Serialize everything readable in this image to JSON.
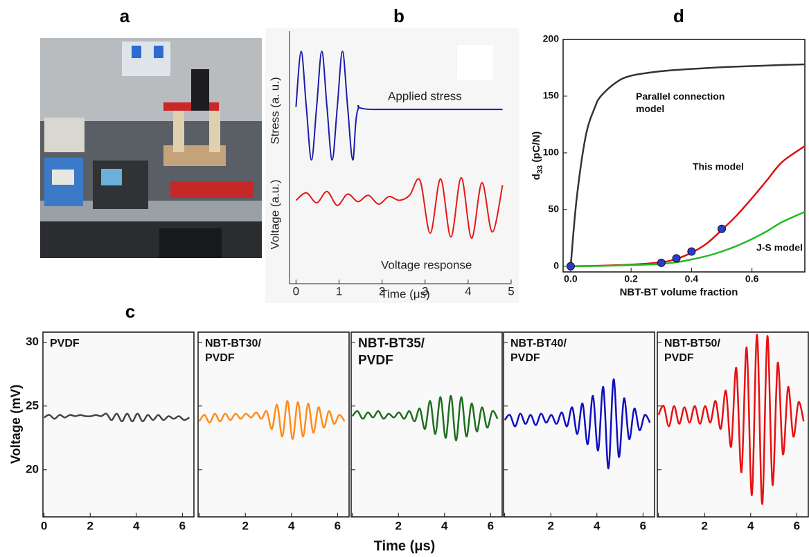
{
  "panel_labels": [
    "a",
    "b",
    "c",
    "d"
  ],
  "chart_data": [
    {
      "type": "line",
      "xlabel": "Time (μs)",
      "ylabels": [
        "Stress (a. u.)",
        "Voltage (a.u.)"
      ],
      "xlim": [
        -0.15,
        5
      ],
      "xticks": [
        0,
        1,
        2,
        3,
        4,
        5
      ],
      "ylim": [
        -10,
        10
      ],
      "series": [
        {
          "name": "Applied stress",
          "color": "#1c1caa",
          "x": [
            0,
            0.12,
            0.24,
            0.36,
            0.48,
            0.6,
            0.72,
            0.84,
            0.96,
            1.08,
            1.2,
            1.32,
            1.44,
            1.8,
            4.8
          ],
          "values": [
            4,
            8.4,
            4,
            -0.2,
            4,
            8.4,
            4,
            -0.2,
            4,
            8.4,
            4,
            -0.2,
            3.8,
            3.8,
            3.8
          ]
        },
        {
          "name": "Voltage response",
          "color": "#e31a1a",
          "x": [
            0,
            0.24,
            0.48,
            0.72,
            0.96,
            1.2,
            1.44,
            1.68,
            1.92,
            2.16,
            2.4,
            2.64,
            2.88,
            3.12,
            3.36,
            3.6,
            3.84,
            4.08,
            4.32,
            4.56,
            4.8
          ],
          "values": [
            -3.4,
            -2.8,
            -3.6,
            -2.7,
            -3.8,
            -2.9,
            -3.5,
            -3.0,
            -3.7,
            -3.1,
            -3.4,
            -3.0,
            -1.8,
            -6.0,
            -1.7,
            -6.3,
            -1.6,
            -6.4,
            -2.0,
            -5.9,
            -2.2
          ]
        }
      ]
    },
    {
      "type": "line",
      "ylabel": {
        "symbol": "d",
        "subscript": "33",
        "unit": " (pC/N)"
      },
      "xlabel": "NBT-BT volume fraction",
      "xlim": [
        -0.025,
        0.775
      ],
      "xticks": [
        {
          "value": 0,
          "label": "0.0"
        },
        0.2,
        0.4,
        0.6
      ],
      "ylim": [
        -5,
        200
      ],
      "yticks": [
        0,
        50,
        100,
        150,
        200
      ],
      "series": [
        {
          "name": "Parallel connection model",
          "color": "#333333",
          "x": [
            0,
            0.02,
            0.05,
            0.08,
            0.1,
            0.15,
            0.2,
            0.3,
            0.4,
            0.5,
            0.6,
            0.7,
            0.775
          ],
          "values": [
            0,
            60,
            115,
            140,
            150,
            162,
            168,
            172,
            174,
            175.5,
            176.5,
            177.5,
            178
          ]
        },
        {
          "name": "This model",
          "color": "#e01010",
          "x": [
            0,
            0.1,
            0.2,
            0.3,
            0.35,
            0.4,
            0.45,
            0.5,
            0.55,
            0.6,
            0.65,
            0.7,
            0.775
          ],
          "values": [
            0,
            0.5,
            1.5,
            3.5,
            6.5,
            12,
            20,
            32,
            45,
            60,
            76,
            92,
            106
          ]
        },
        {
          "name": "J-S model",
          "color": "#22bb22",
          "x": [
            0,
            0.1,
            0.2,
            0.3,
            0.35,
            0.4,
            0.45,
            0.5,
            0.55,
            0.6,
            0.65,
            0.7,
            0.775
          ],
          "values": [
            0,
            0.3,
            1,
            2.2,
            3.5,
            6,
            9,
            13,
            18,
            24,
            31,
            39,
            48
          ]
        }
      ],
      "points": {
        "color": "#2a3ad0",
        "x": [
          0,
          0.3,
          0.35,
          0.4,
          0.5
        ],
        "values": [
          0,
          3,
          7,
          13,
          33
        ]
      }
    },
    {
      "type": "multi_panel_line",
      "ylabel": "Voltage (mV)",
      "xlabel": "Time (μs)",
      "xlim": [
        -0.05,
        6.5
      ],
      "xticks": [
        0,
        2,
        4,
        6
      ],
      "ylim": [
        16.3,
        30.8
      ],
      "yticks": [
        20,
        25,
        30
      ],
      "x": [
        0,
        0.225,
        0.45,
        0.675,
        0.9,
        1.125,
        1.35,
        1.575,
        1.8,
        2.025,
        2.25,
        2.475,
        2.7,
        2.925,
        3.15,
        3.375,
        3.6,
        3.825,
        4.05,
        4.275,
        4.5,
        4.725,
        4.95,
        5.175,
        5.4,
        5.625,
        5.85,
        6.075,
        6.3
      ],
      "series": [
        {
          "name": "PVDF",
          "color": "#444444",
          "values": [
            24.1,
            24.3,
            24.0,
            24.3,
            24.1,
            24.3,
            24.2,
            24.3,
            24.2,
            24.2,
            24.3,
            24.2,
            24.4,
            23.9,
            24.4,
            23.8,
            24.4,
            23.8,
            24.4,
            23.8,
            24.3,
            23.9,
            24.3,
            23.9,
            24.2,
            24.0,
            24.2,
            23.9,
            24.1
          ]
        },
        {
          "name": "NBT-BT30/PVDF",
          "color": "#ff8c1a",
          "values": [
            23.8,
            24.3,
            23.7,
            24.4,
            23.8,
            24.4,
            23.9,
            24.4,
            24.0,
            24.4,
            24.1,
            24.5,
            24.0,
            24.6,
            23.2,
            25.1,
            22.6,
            25.4,
            22.4,
            25.3,
            22.6,
            25.2,
            22.9,
            24.9,
            23.3,
            24.6,
            23.6,
            24.3,
            23.8
          ]
        },
        {
          "name": "NBT-BT35/PVDF",
          "color": "#1f6e1f",
          "values": [
            24.2,
            24.6,
            24.0,
            24.5,
            24.1,
            24.6,
            24.0,
            24.4,
            24.1,
            24.5,
            24.0,
            24.6,
            23.8,
            24.8,
            23.2,
            25.4,
            22.8,
            25.7,
            22.5,
            25.8,
            22.3,
            25.7,
            22.6,
            25.2,
            23.0,
            24.9,
            23.3,
            24.6,
            24.0
          ]
        },
        {
          "name": "NBT-BT40/PVDF",
          "color": "#1010c0",
          "values": [
            23.9,
            24.3,
            23.4,
            24.4,
            23.6,
            24.3,
            23.5,
            24.4,
            23.7,
            24.3,
            23.6,
            24.5,
            23.4,
            24.9,
            22.8,
            25.2,
            22.0,
            25.8,
            21.5,
            26.5,
            20.1,
            27.1,
            21.0,
            25.6,
            22.4,
            24.8,
            23.1,
            24.3,
            23.7
          ]
        },
        {
          "name": "NBT-BT50/PVDF",
          "color": "#e81010",
          "values": [
            24.3,
            25.0,
            23.4,
            25.0,
            23.6,
            24.9,
            23.7,
            25.0,
            23.6,
            25.0,
            23.7,
            25.4,
            23.2,
            26.2,
            21.8,
            28.0,
            19.8,
            29.6,
            18.0,
            30.6,
            17.3,
            30.5,
            18.8,
            28.4,
            21.2,
            26.5,
            22.6,
            25.3,
            23.8
          ]
        }
      ]
    }
  ]
}
